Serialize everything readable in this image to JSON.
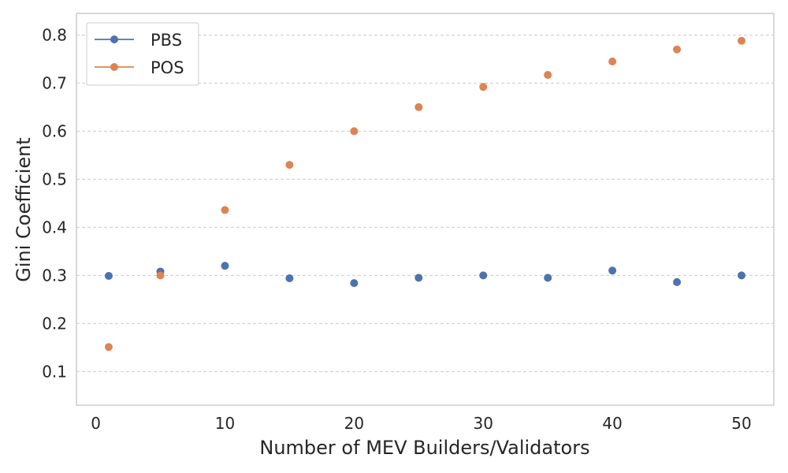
{
  "chart_data": {
    "type": "scatter",
    "title": "",
    "xlabel": "Number of MEV Builders/Validators",
    "ylabel": "Gini Coefficient",
    "xlim": [
      -1.5,
      52.5
    ],
    "ylim": [
      0.03,
      0.845
    ],
    "x_ticks": [
      "0",
      "10",
      "20",
      "30",
      "40",
      "50"
    ],
    "y_ticks": [
      "0.1",
      "0.2",
      "0.3",
      "0.4",
      "0.5",
      "0.6",
      "0.7",
      "0.8"
    ],
    "grid": "horizontal dashed",
    "legend_position": "top-left",
    "x": [
      1,
      5,
      10,
      15,
      20,
      25,
      30,
      35,
      40,
      45,
      50
    ],
    "series": [
      {
        "name": "PBS",
        "color": "#4c72b0",
        "values": [
          0.299,
          0.308,
          0.32,
          0.294,
          0.284,
          0.295,
          0.3,
          0.295,
          0.31,
          0.286,
          0.3
        ]
      },
      {
        "name": "POS",
        "color": "#dd8452",
        "values": [
          0.151,
          0.3,
          0.436,
          0.53,
          0.6,
          0.65,
          0.692,
          0.717,
          0.745,
          0.77,
          0.788
        ]
      }
    ]
  }
}
